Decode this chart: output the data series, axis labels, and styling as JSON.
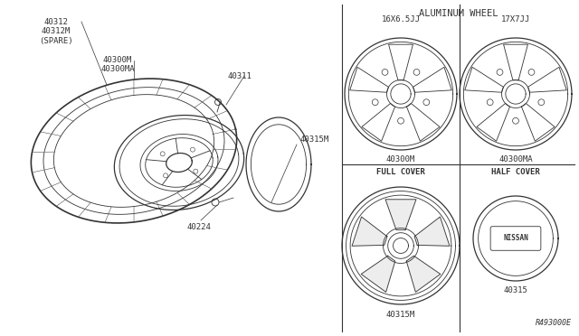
{
  "bg_color": "#ffffff",
  "line_color": "#333333",
  "title": "ALUMINUM WHEEL",
  "diagram_number": "R493000E",
  "labels": {
    "tire": "40312\n40312M\n(SPARE)",
    "valve": "40311",
    "wheel": "40300M\n40300MA",
    "center_cap": "40315M",
    "nut": "40224",
    "alum_16": "16X6.5JJ",
    "alum_16_part": "40300M",
    "alum_17": "17X7JJ",
    "alum_17_part": "40300MA",
    "full_cover": "FULL COVER",
    "full_cover_part": "40315M",
    "half_cover": "HALF COVER",
    "half_cover_part": "40315"
  }
}
